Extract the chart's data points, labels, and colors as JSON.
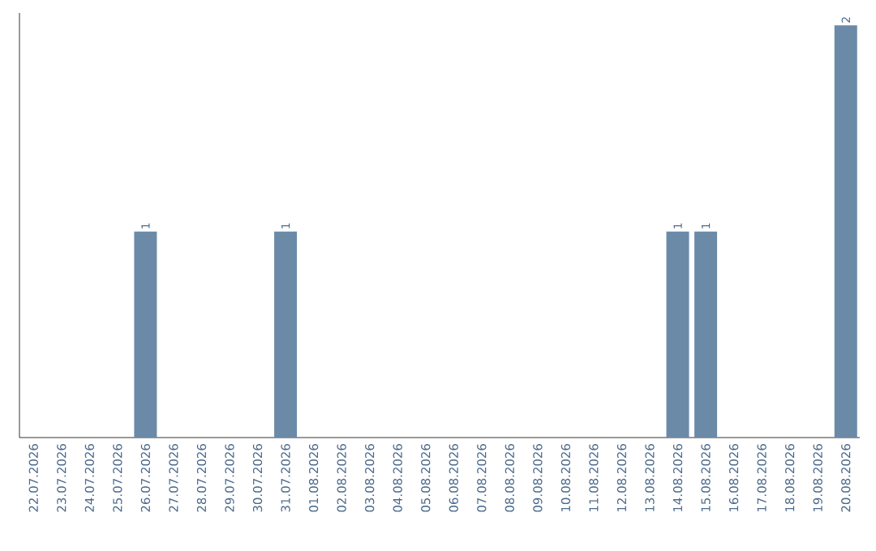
{
  "chart_data": {
    "type": "bar",
    "categories": [
      "22.07.2026",
      "23.07.2026",
      "24.07.2026",
      "25.07.2026",
      "26.07.2026",
      "27.07.2026",
      "28.07.2026",
      "29.07.2026",
      "30.07.2026",
      "31.07.2026",
      "01.08.2026",
      "02.08.2026",
      "03.08.2026",
      "04.08.2026",
      "05.08.2026",
      "06.08.2026",
      "07.08.2026",
      "08.08.2026",
      "09.08.2026",
      "10.08.2026",
      "11.08.2026",
      "12.08.2026",
      "13.08.2026",
      "14.08.2026",
      "15.08.2026",
      "16.08.2026",
      "17.08.2026",
      "18.08.2026",
      "19.08.2026",
      "20.08.2026"
    ],
    "values": [
      0,
      0,
      0,
      0,
      1,
      0,
      0,
      0,
      0,
      1,
      0,
      0,
      0,
      0,
      0,
      0,
      0,
      0,
      0,
      0,
      0,
      0,
      0,
      1,
      1,
      0,
      0,
      0,
      0,
      2
    ],
    "value_labels": [
      null,
      null,
      null,
      null,
      "1",
      null,
      null,
      null,
      null,
      "1",
      null,
      null,
      null,
      null,
      null,
      null,
      null,
      null,
      null,
      null,
      null,
      null,
      null,
      "1",
      "1",
      null,
      null,
      null,
      null,
      "2"
    ],
    "color": "#6b8aa8"
  }
}
